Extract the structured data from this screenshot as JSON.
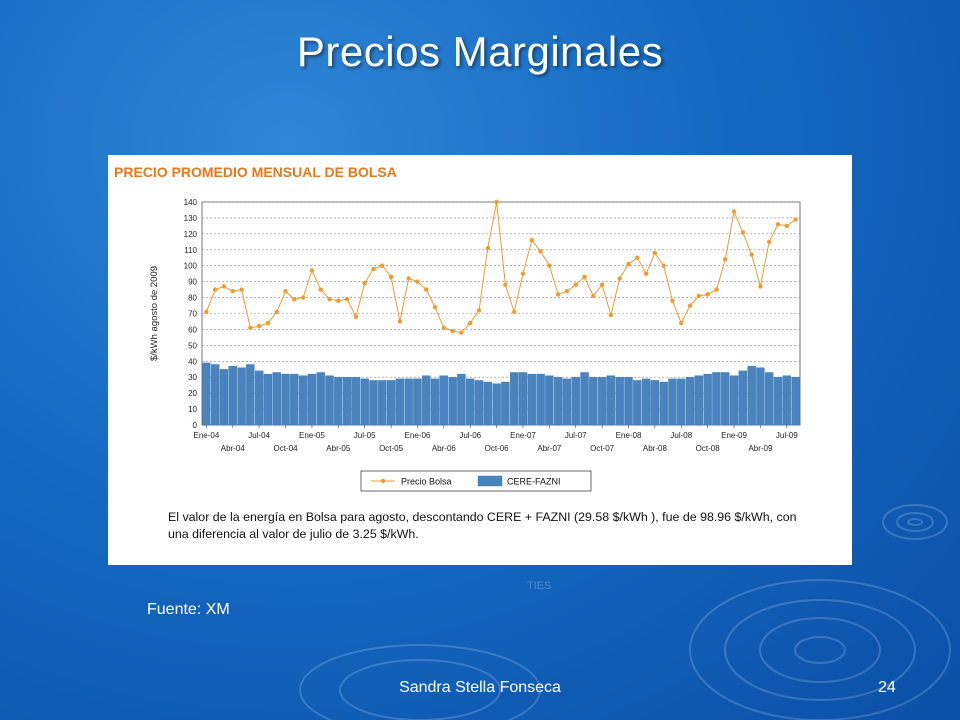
{
  "slide": {
    "title": "Precios Marginales",
    "source": "Fuente: XM",
    "faint_text": "TIES",
    "author": "Sandra Stella Fonseca",
    "page_number": "24"
  },
  "colors": {
    "line": "#f39a2e",
    "bar": "#4a84bf",
    "bar_stroke": "#3b6fa3",
    "title_orange": "#e8771c"
  },
  "note": "El valor de la energía en Bolsa para agosto, descontando CERE + FAZNI (29.58 $/kWh ), fue de 98.96 $/kWh, con una diferencia al valor de julio de 3.25 $/kWh.",
  "chart_data": {
    "type": "bar+line",
    "title": "PRECIO PROMEDIO MENSUAL DE BOLSA",
    "ylabel": "$/kWh agosto de 2009",
    "ylim": [
      0,
      140
    ],
    "ytick_step": 10,
    "grid": true,
    "legend_position": "bottom-center",
    "x_tick_labels_top_row": [
      "Ene-04",
      "Jul-04",
      "Ene-05",
      "Jul-05",
      "Ene-06",
      "Jul-06",
      "Ene-07",
      "Jul-07",
      "Ene-08",
      "Jul-08",
      "Ene-09",
      "Jul-09"
    ],
    "x_tick_labels_bottom_row": [
      "Abr-04",
      "Oct-04",
      "Abr-05",
      "Oct-05",
      "Abr-06",
      "Oct-06",
      "Abr-07",
      "Oct-07",
      "Abr-08",
      "Oct-08",
      "Abr-09"
    ],
    "categories": [
      "Ene-04",
      "Feb-04",
      "Mar-04",
      "Abr-04",
      "May-04",
      "Jun-04",
      "Jul-04",
      "Ago-04",
      "Sep-04",
      "Oct-04",
      "Nov-04",
      "Dic-04",
      "Ene-05",
      "Feb-05",
      "Mar-05",
      "Abr-05",
      "May-05",
      "Jun-05",
      "Jul-05",
      "Ago-05",
      "Sep-05",
      "Oct-05",
      "Nov-05",
      "Dic-05",
      "Ene-06",
      "Feb-06",
      "Mar-06",
      "Abr-06",
      "May-06",
      "Jun-06",
      "Jul-06",
      "Ago-06",
      "Sep-06",
      "Oct-06",
      "Nov-06",
      "Dic-06",
      "Ene-07",
      "Feb-07",
      "Mar-07",
      "Abr-07",
      "May-07",
      "Jun-07",
      "Jul-07",
      "Ago-07",
      "Sep-07",
      "Oct-07",
      "Nov-07",
      "Dic-07",
      "Ene-08",
      "Feb-08",
      "Mar-08",
      "Abr-08",
      "May-08",
      "Jun-08",
      "Jul-08",
      "Ago-08",
      "Sep-08",
      "Oct-08",
      "Nov-08",
      "Dic-08",
      "Ene-09",
      "Feb-09",
      "Mar-09",
      "Abr-09",
      "May-09",
      "Jun-09",
      "Jul-09",
      "Ago-09"
    ],
    "series": [
      {
        "name": "Precio Bolsa",
        "kind": "line",
        "values": [
          71,
          85,
          87,
          84,
          85,
          61,
          62,
          64,
          71,
          84,
          79,
          80,
          97,
          85,
          79,
          78,
          79,
          68,
          89,
          98,
          100,
          93,
          65,
          92,
          90,
          85,
          74,
          61,
          59,
          58,
          64,
          72,
          111,
          140,
          88,
          71,
          95,
          116,
          109,
          100,
          82,
          84,
          88,
          93,
          81,
          88,
          69,
          92,
          101,
          105,
          95,
          108,
          100,
          78,
          64,
          75,
          81,
          82,
          85,
          104,
          134,
          121,
          107,
          87,
          115,
          126,
          125,
          129
        ]
      },
      {
        "name": "CERE-FAZNI",
        "kind": "bar",
        "values": [
          39,
          38,
          35,
          37,
          36,
          38,
          34,
          32,
          33,
          32,
          32,
          31,
          32,
          33,
          31,
          30,
          30,
          30,
          29,
          28,
          28,
          28,
          29,
          29,
          29,
          31,
          29,
          31,
          30,
          32,
          29,
          28,
          27,
          26,
          27,
          33,
          33,
          32,
          32,
          31,
          30,
          29,
          30,
          33,
          30,
          30,
          31,
          30,
          30,
          28,
          29,
          28,
          27,
          29,
          29,
          30,
          31,
          32,
          33,
          33,
          31,
          34,
          37,
          36,
          33,
          30,
          31,
          30
        ]
      }
    ]
  }
}
